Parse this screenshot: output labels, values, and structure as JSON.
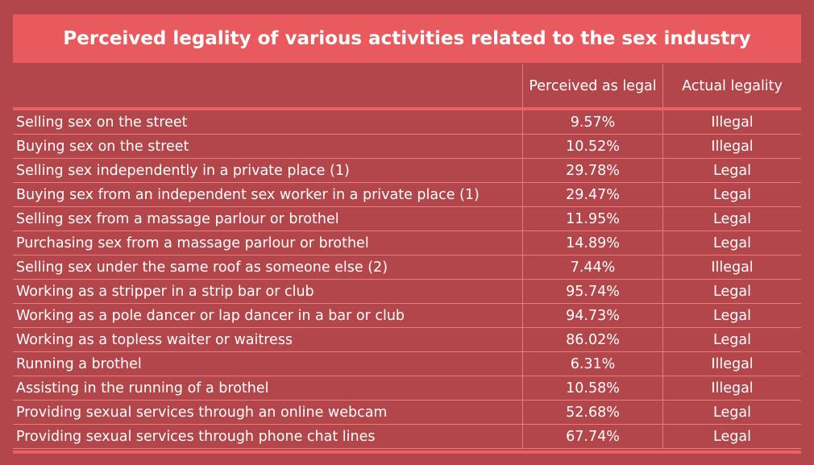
{
  "chart_data": {
    "type": "table",
    "title": "Perceived legality of various activities related to the sex industry",
    "columns": [
      "",
      "Perceived as legal",
      "Actual legality"
    ],
    "rows": [
      {
        "activity": "Selling sex on the street",
        "perceived": "9.57%",
        "actual": "Illegal"
      },
      {
        "activity": "Buying sex on the street",
        "perceived": "10.52%",
        "actual": "Illegal"
      },
      {
        "activity": "Selling sex independently in a private place (1)",
        "perceived": "29.78%",
        "actual": "Legal"
      },
      {
        "activity": "Buying sex from an independent sex worker in a private place (1)",
        "perceived": "29.47%",
        "actual": "Legal"
      },
      {
        "activity": "Selling sex from a massage parlour or brothel",
        "perceived": "11.95%",
        "actual": "Legal"
      },
      {
        "activity": "Purchasing sex from a massage parlour or brothel",
        "perceived": "14.89%",
        "actual": "Legal"
      },
      {
        "activity": "Selling sex under the same roof as someone else (2)",
        "perceived": "7.44%",
        "actual": "Illegal"
      },
      {
        "activity": "Working as a stripper in a strip bar or club",
        "perceived": "95.74%",
        "actual": "Legal"
      },
      {
        "activity": "Working as a pole dancer or lap dancer in a bar or club",
        "perceived": "94.73%",
        "actual": "Legal"
      },
      {
        "activity": "Working as a topless waiter or waitress",
        "perceived": "86.02%",
        "actual": "Legal"
      },
      {
        "activity": "Running a brothel",
        "perceived": "6.31%",
        "actual": "Illegal"
      },
      {
        "activity": "Assisting in the running of a brothel",
        "perceived": "10.58%",
        "actual": "Illegal"
      },
      {
        "activity": "Providing sexual services through an online webcam",
        "perceived": "52.68%",
        "actual": "Legal"
      },
      {
        "activity": "Providing sexual services through phone chat lines",
        "perceived": "67.74%",
        "actual": "Legal"
      }
    ]
  },
  "colors": {
    "background": "#b2464b",
    "title_bar": "#e85a5e",
    "rule": "#ea6064",
    "text": "#ffffff"
  }
}
